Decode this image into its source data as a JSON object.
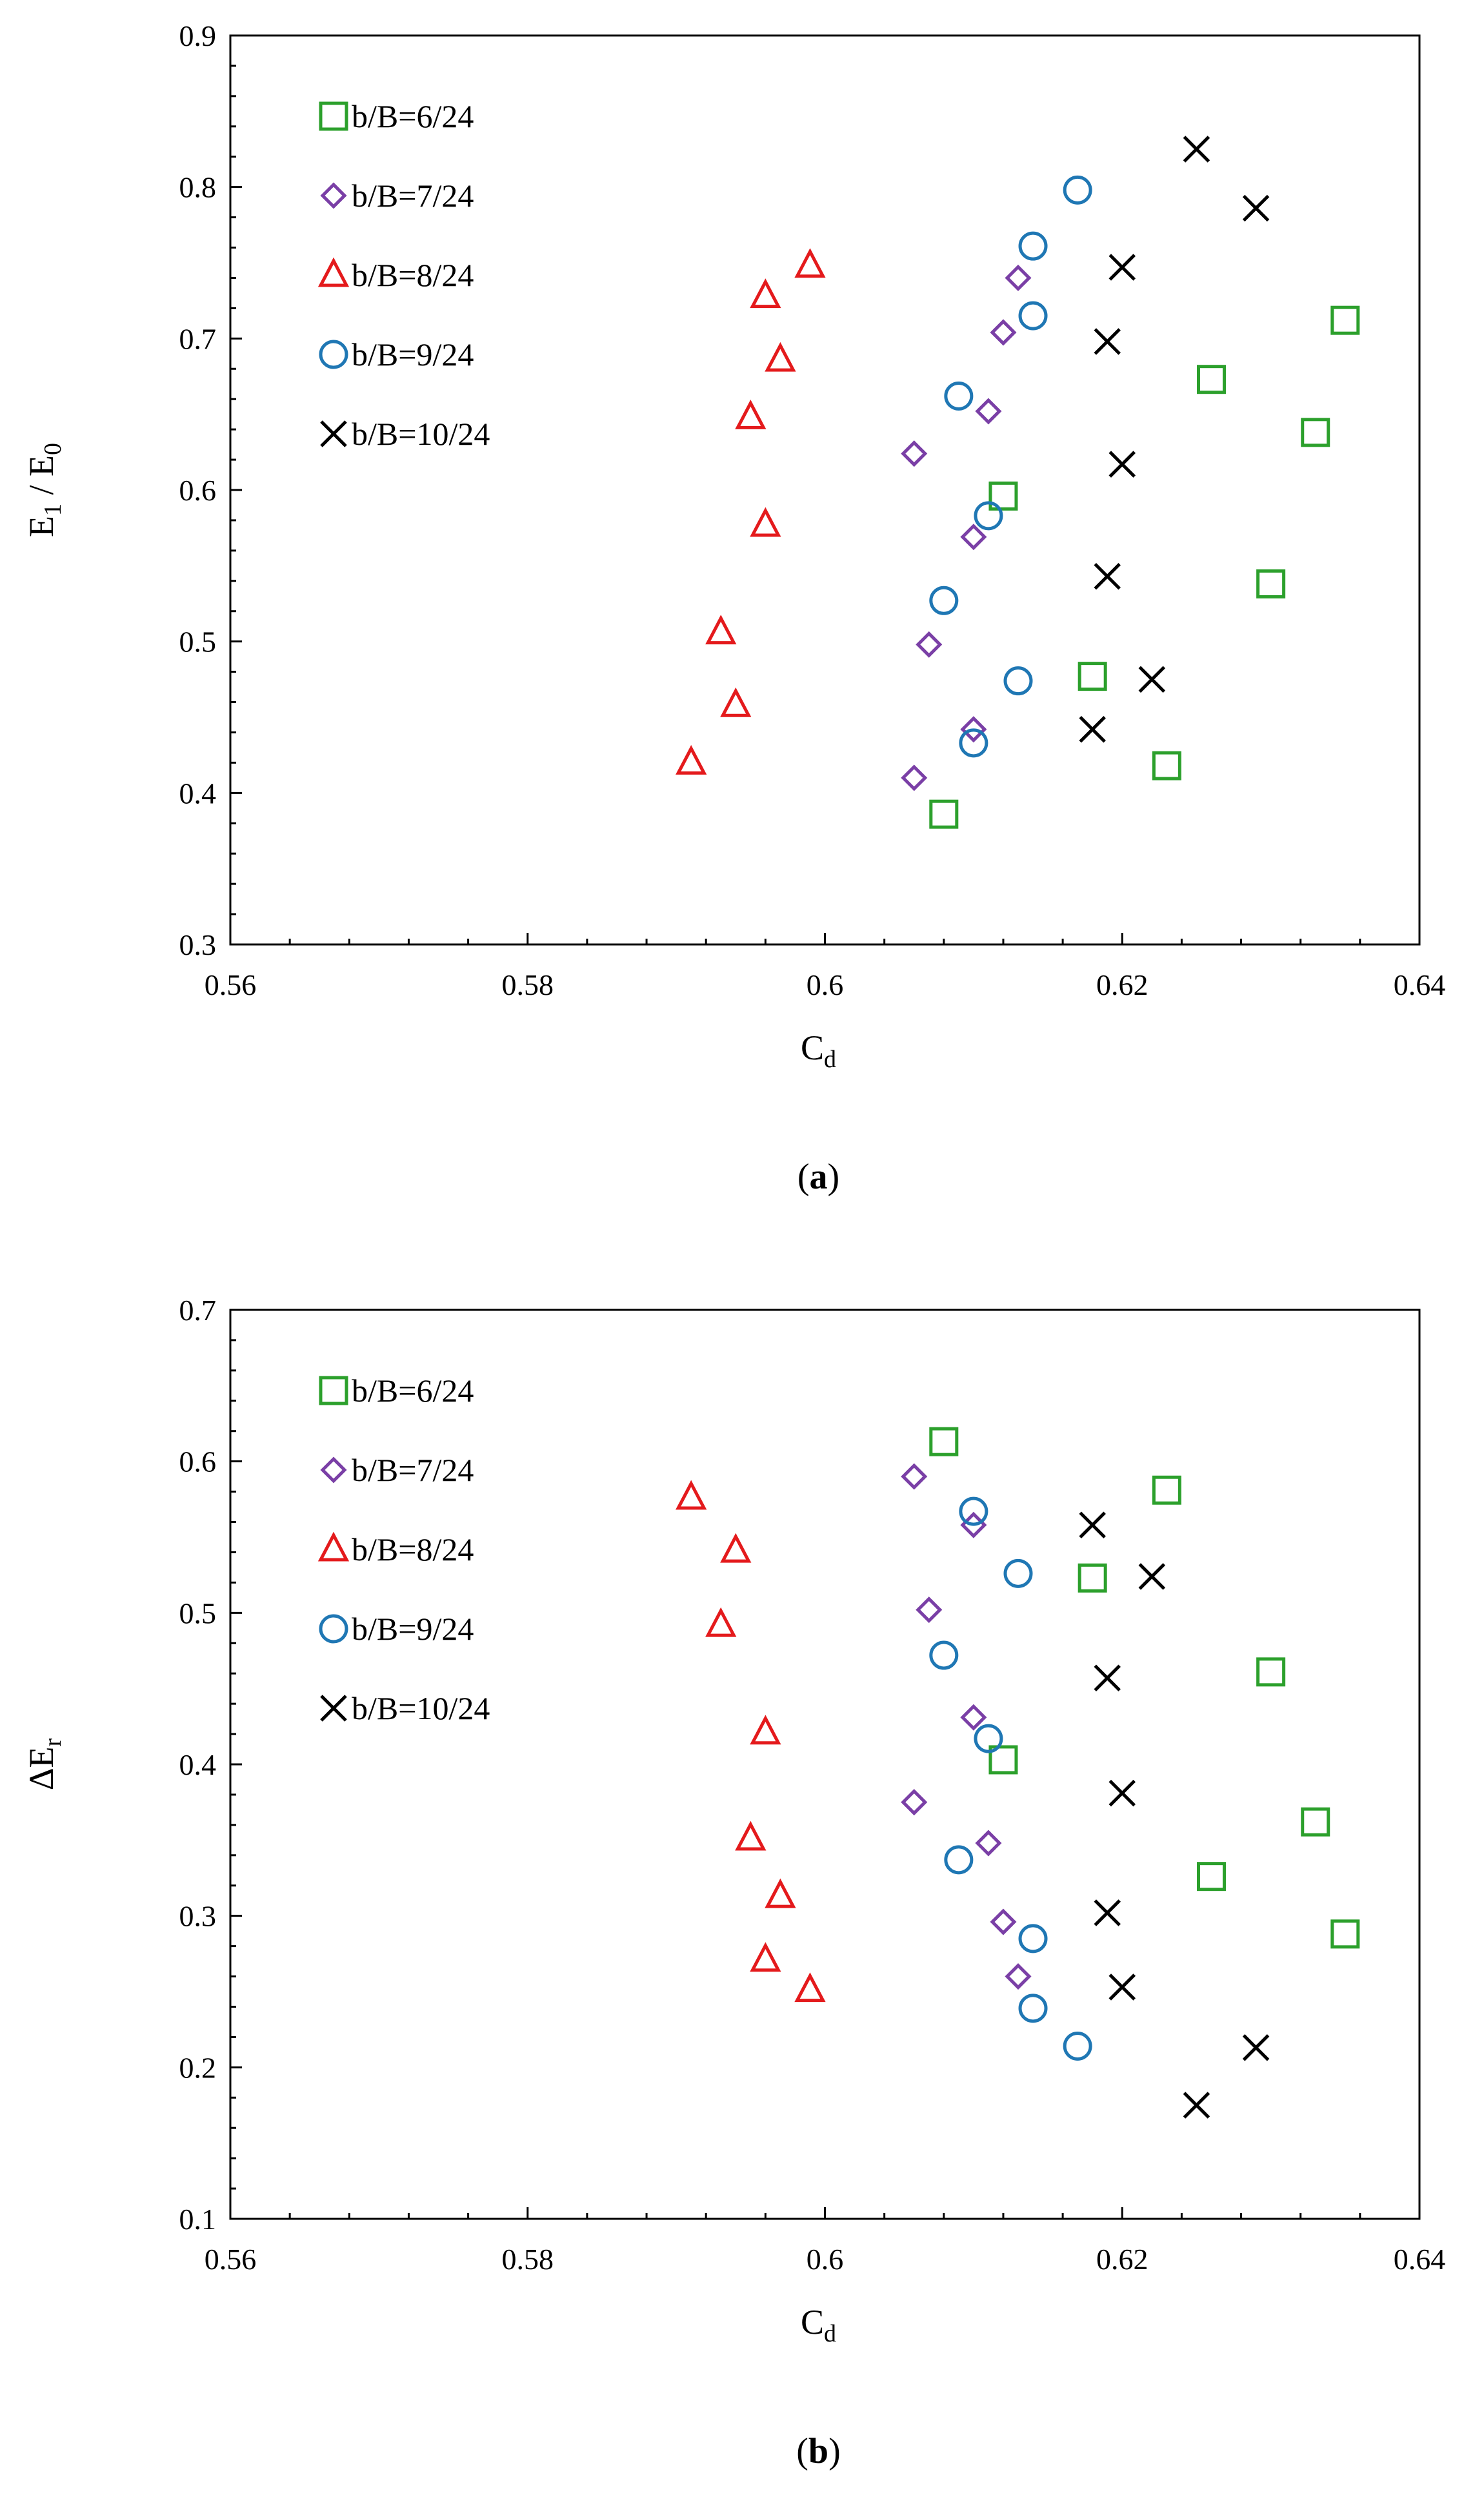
{
  "colors": {
    "axis": "#000000",
    "square": "#2ca02c",
    "diamond": "#7a3fa6",
    "triangle": "#e41a1c",
    "circle": "#1f77b4",
    "cross": "#000000"
  },
  "chart_data": [
    {
      "type": "scatter",
      "panel": "a",
      "caption": "(a)",
      "xlabel": "Cd",
      "ylabel": "E1 / E0",
      "xlim": [
        0.56,
        0.64
      ],
      "ylim": [
        0.3,
        0.9
      ],
      "xticks": [
        0.56,
        0.58,
        0.6,
        0.62,
        0.64
      ],
      "xtick_labels": [
        "0.56",
        "0.58",
        "0.6",
        "0.62",
        "0.64"
      ],
      "yticks": [
        0.3,
        0.4,
        0.5,
        0.6,
        0.7,
        0.8,
        0.9
      ],
      "ytick_labels": [
        "0.3",
        "0.4",
        "0.5",
        "0.6",
        "0.7",
        "0.8",
        "0.9"
      ],
      "grid": false,
      "legend_position": "top-left",
      "series": [
        {
          "name": "b/B=6/24",
          "marker": "square",
          "x": [
            0.608,
            0.612,
            0.618,
            0.623,
            0.626,
            0.63,
            0.633,
            0.635
          ],
          "y": [
            0.386,
            0.596,
            0.477,
            0.418,
            0.673,
            0.538,
            0.638,
            0.712
          ]
        },
        {
          "name": "b/B=7/24",
          "marker": "diamond",
          "x": [
            0.606,
            0.606,
            0.607,
            0.61,
            0.61,
            0.611,
            0.612,
            0.613
          ],
          "y": [
            0.41,
            0.624,
            0.498,
            0.442,
            0.569,
            0.652,
            0.704,
            0.74
          ]
        },
        {
          "name": "b/B=8/24",
          "marker": "triangle",
          "x": [
            0.591,
            0.593,
            0.594,
            0.595,
            0.596,
            0.596,
            0.597,
            0.599
          ],
          "y": [
            0.42,
            0.506,
            0.458,
            0.648,
            0.577,
            0.728,
            0.686,
            0.748
          ]
        },
        {
          "name": "b/B=9/24",
          "marker": "circle",
          "x": [
            0.608,
            0.609,
            0.61,
            0.611,
            0.613,
            0.614,
            0.614,
            0.617
          ],
          "y": [
            0.527,
            0.662,
            0.433,
            0.583,
            0.474,
            0.715,
            0.761,
            0.798
          ]
        },
        {
          "name": "b/B=10/24",
          "marker": "cross",
          "x": [
            0.618,
            0.619,
            0.619,
            0.62,
            0.62,
            0.622,
            0.625,
            0.629
          ],
          "y": [
            0.442,
            0.543,
            0.698,
            0.617,
            0.747,
            0.475,
            0.825,
            0.786
          ]
        }
      ]
    },
    {
      "type": "scatter",
      "panel": "b",
      "caption": "(b)",
      "xlabel": "Cd",
      "ylabel": "ΔEr",
      "xlim": [
        0.56,
        0.64
      ],
      "ylim": [
        0.1,
        0.7
      ],
      "xticks": [
        0.56,
        0.58,
        0.6,
        0.62,
        0.64
      ],
      "xtick_labels": [
        "0.56",
        "0.58",
        "0.6",
        "0.62",
        "0.64"
      ],
      "yticks": [
        0.1,
        0.2,
        0.3,
        0.4,
        0.5,
        0.6,
        0.7
      ],
      "ytick_labels": [
        "0.1",
        "0.2",
        "0.3",
        "0.4",
        "0.5",
        "0.6",
        "0.7"
      ],
      "grid": false,
      "legend_position": "top-left",
      "series": [
        {
          "name": "b/B=6/24",
          "marker": "square",
          "x": [
            0.608,
            0.612,
            0.618,
            0.623,
            0.626,
            0.63,
            0.633,
            0.635
          ],
          "y": [
            0.613,
            0.403,
            0.523,
            0.581,
            0.326,
            0.461,
            0.362,
            0.288
          ]
        },
        {
          "name": "b/B=7/24",
          "marker": "diamond",
          "x": [
            0.606,
            0.606,
            0.607,
            0.61,
            0.61,
            0.611,
            0.612,
            0.613
          ],
          "y": [
            0.59,
            0.375,
            0.502,
            0.558,
            0.431,
            0.348,
            0.296,
            0.26
          ]
        },
        {
          "name": "b/B=8/24",
          "marker": "triangle",
          "x": [
            0.591,
            0.593,
            0.594,
            0.595,
            0.596,
            0.596,
            0.597,
            0.599
          ],
          "y": [
            0.576,
            0.492,
            0.541,
            0.351,
            0.421,
            0.271,
            0.313,
            0.251
          ]
        },
        {
          "name": "b/B=9/24",
          "marker": "circle",
          "x": [
            0.608,
            0.609,
            0.61,
            0.611,
            0.613,
            0.614,
            0.614,
            0.617
          ],
          "y": [
            0.472,
            0.337,
            0.567,
            0.417,
            0.526,
            0.285,
            0.239,
            0.214
          ]
        },
        {
          "name": "b/B=10/24",
          "marker": "cross",
          "x": [
            0.618,
            0.619,
            0.619,
            0.62,
            0.62,
            0.622,
            0.625,
            0.629
          ],
          "y": [
            0.558,
            0.457,
            0.302,
            0.381,
            0.253,
            0.524,
            0.175,
            0.213
          ]
        }
      ]
    }
  ]
}
